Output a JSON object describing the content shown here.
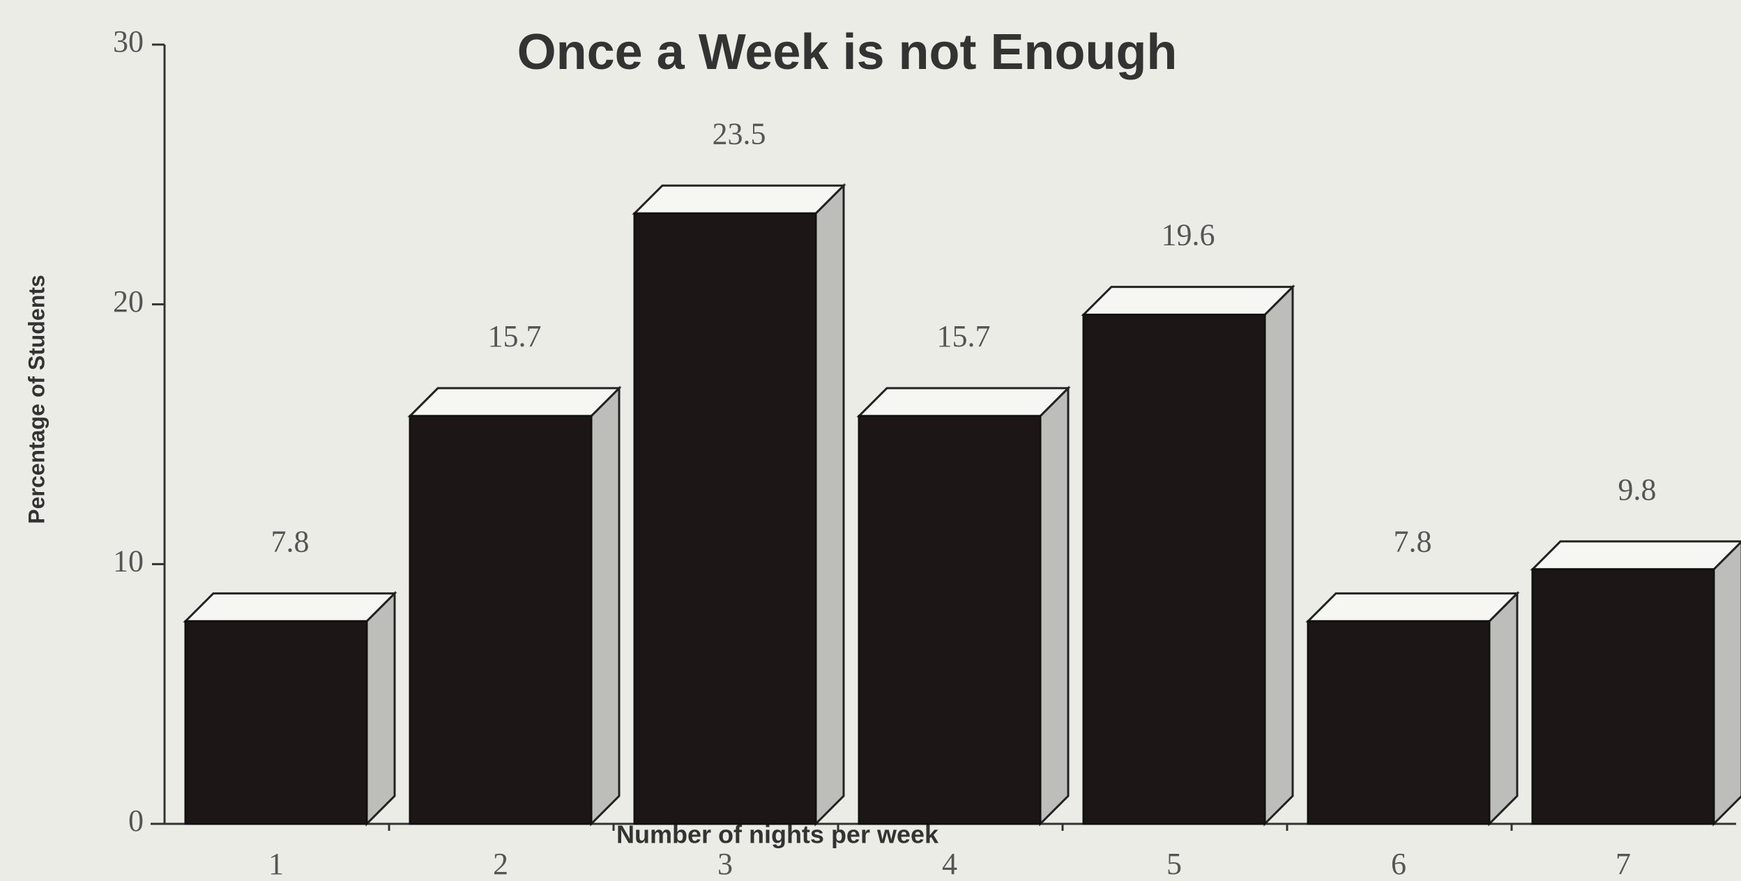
{
  "chart_data": {
    "type": "bar",
    "title": "Once a Week is not Enough",
    "x_label": "Number of nights per week",
    "y_label": "Percentage of Students",
    "categories": [
      "1",
      "2",
      "3",
      "4",
      "5",
      "6",
      "7"
    ],
    "values": [
      7.8,
      15.7,
      23.5,
      15.7,
      19.6,
      7.8,
      9.8
    ],
    "color": "#1c1616",
    "ylim": [
      0,
      30
    ],
    "yticks": [
      0,
      10,
      20,
      30
    ]
  }
}
